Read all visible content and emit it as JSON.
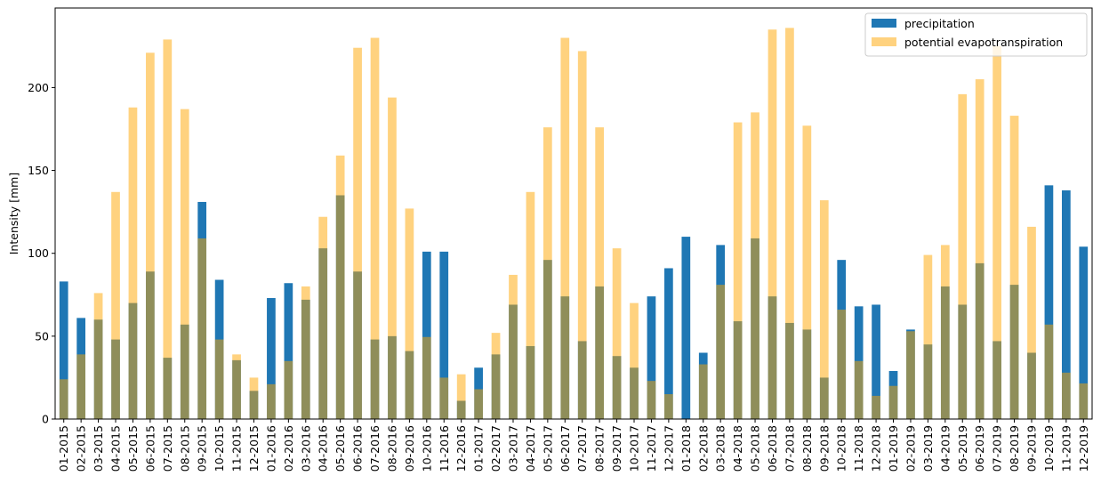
{
  "chart_data": {
    "type": "bar",
    "ylabel": "Intensity [mm]",
    "categories": [
      "01-2015",
      "02-2015",
      "03-2015",
      "04-2015",
      "05-2015",
      "06-2015",
      "07-2015",
      "08-2015",
      "09-2015",
      "10-2015",
      "11-2015",
      "12-2015",
      "01-2016",
      "02-2016",
      "03-2016",
      "04-2016",
      "05-2016",
      "06-2016",
      "07-2016",
      "08-2016",
      "09-2016",
      "10-2016",
      "11-2016",
      "12-2016",
      "01-2017",
      "02-2017",
      "03-2017",
      "04-2017",
      "05-2017",
      "06-2017",
      "07-2017",
      "08-2017",
      "09-2017",
      "10-2017",
      "11-2017",
      "12-2017",
      "01-2018",
      "02-2018",
      "03-2018",
      "04-2018",
      "05-2018",
      "06-2018",
      "07-2018",
      "08-2018",
      "09-2018",
      "10-2018",
      "11-2018",
      "12-2018",
      "01-2019",
      "02-2019",
      "03-2019",
      "04-2019",
      "05-2019",
      "06-2019",
      "07-2019",
      "08-2019",
      "09-2019",
      "10-2019",
      "11-2019",
      "12-2019"
    ],
    "series": [
      {
        "name": "precipitation",
        "color": "#1f77b4",
        "alpha": 1,
        "values": [
          83,
          61,
          60,
          48,
          70,
          89,
          37,
          57,
          131,
          84,
          35.5,
          17,
          73,
          82,
          72,
          103,
          135,
          89,
          48,
          50,
          41,
          101,
          101,
          11,
          31,
          39,
          69,
          44,
          96,
          74,
          47,
          80,
          38,
          31,
          74,
          91,
          110,
          40,
          105,
          59,
          109,
          74,
          58,
          54,
          25,
          96,
          68,
          69,
          29,
          54,
          45,
          80,
          69,
          94,
          47,
          81,
          40,
          141,
          138,
          104
        ]
      },
      {
        "name": "potential evapotranspiration",
        "color": "orange",
        "alpha": 0.5,
        "values": [
          24,
          39,
          76,
          137,
          188,
          221,
          229,
          187,
          109,
          48,
          39,
          25,
          21,
          35,
          80,
          122,
          159,
          224,
          230,
          194,
          127,
          49.5,
          25,
          27,
          18,
          52,
          87,
          137,
          176,
          230,
          222,
          176,
          103,
          70,
          23,
          15,
          0,
          33,
          81,
          179,
          185,
          235,
          236,
          177,
          132,
          66,
          35,
          14,
          20,
          53,
          99,
          105,
          196,
          205,
          225,
          183,
          116,
          57,
          28,
          21.5
        ]
      }
    ],
    "ylim": [
      0,
      248
    ],
    "yticks": [
      0,
      50,
      100,
      150,
      200
    ],
    "legend": "upper right"
  }
}
